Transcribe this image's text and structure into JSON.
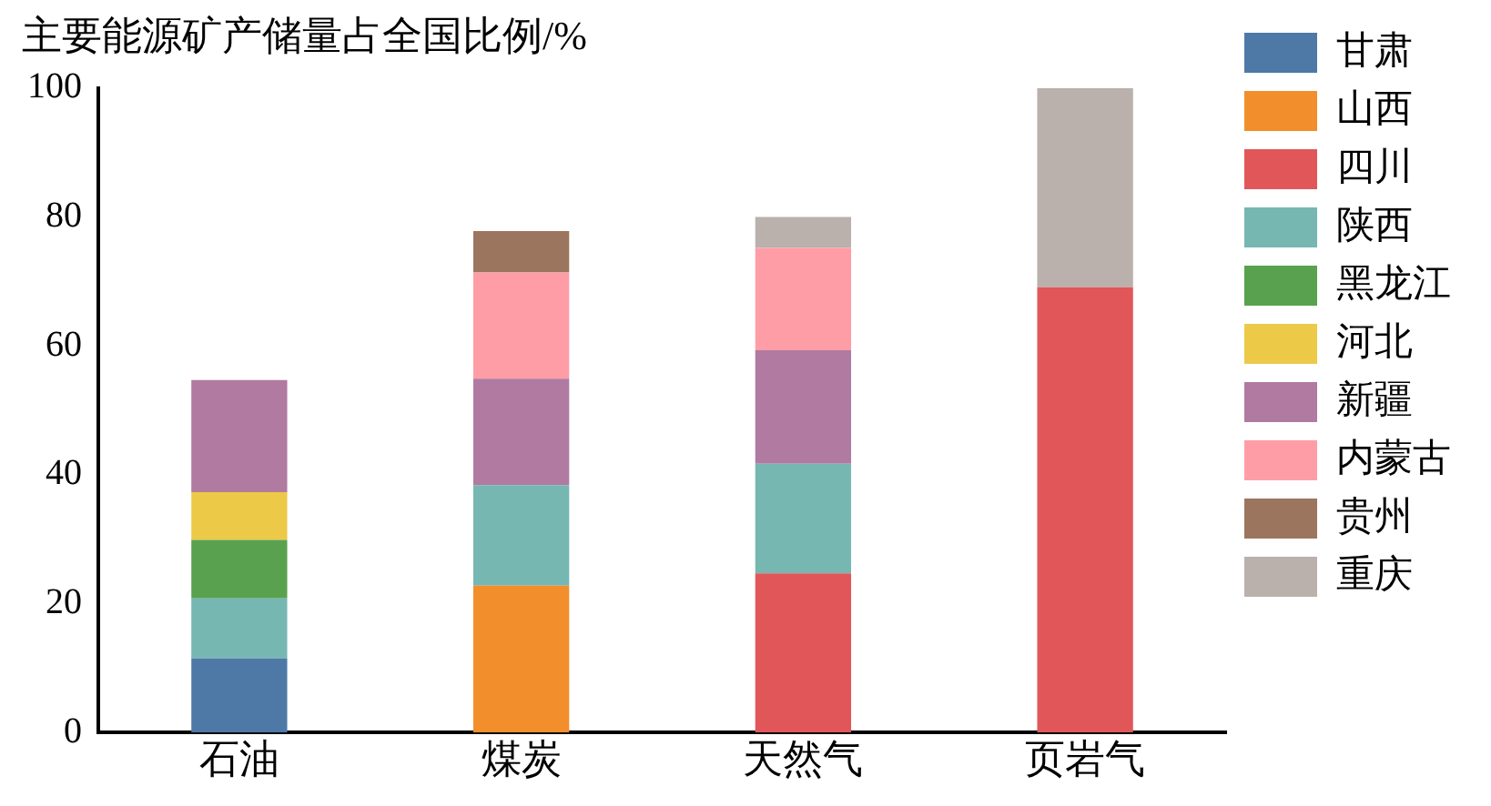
{
  "chart_data": {
    "type": "bar",
    "title": "主要能源矿产储量占全国比例/%",
    "categories": [
      "石油",
      "煤炭",
      "天然气",
      "页岩气"
    ],
    "stacked": true,
    "ylim": [
      0,
      100
    ],
    "yticks": [
      0,
      20,
      40,
      60,
      80,
      100
    ],
    "grid": false,
    "legend": "right",
    "series": [
      {
        "name": "甘肃",
        "color": "#4e79a7",
        "values": [
          11.5,
          null,
          null,
          null
        ]
      },
      {
        "name": "山西",
        "color": "#f28e2b",
        "values": [
          null,
          22.8,
          null,
          null
        ]
      },
      {
        "name": "四川",
        "color": "#e15759",
        "values": [
          null,
          null,
          24.7,
          69.1
        ]
      },
      {
        "name": "陕西",
        "color": "#76b7b2",
        "values": [
          9.3,
          15.6,
          17.0,
          null
        ]
      },
      {
        "name": "黑龙江",
        "color": "#59a14f",
        "values": [
          9.1,
          null,
          null,
          null
        ]
      },
      {
        "name": "河北",
        "color": "#edc948",
        "values": [
          7.4,
          null,
          null,
          null
        ]
      },
      {
        "name": "新疆",
        "color": "#b07aa1",
        "values": [
          17.4,
          16.5,
          17.6,
          null
        ]
      },
      {
        "name": "内蒙古",
        "color": "#ff9da7",
        "values": [
          null,
          16.5,
          15.9,
          null
        ]
      },
      {
        "name": "贵州",
        "color": "#9c755f",
        "values": [
          null,
          6.4,
          null,
          null
        ]
      },
      {
        "name": "重庆",
        "color": "#bab0ac",
        "values": [
          null,
          null,
          4.8,
          30.9
        ]
      }
    ]
  }
}
